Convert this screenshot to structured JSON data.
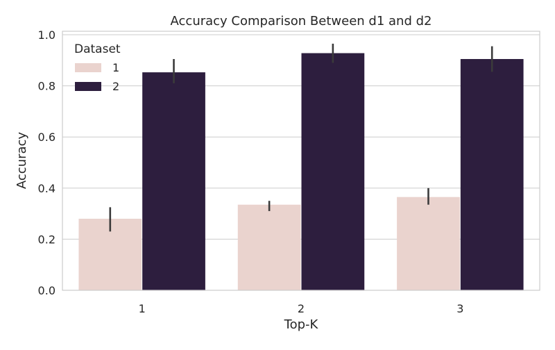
{
  "chart_data": {
    "type": "bar",
    "title": "Accuracy Comparison Between d1 and d2",
    "xlabel": "Top-K",
    "ylabel": "Accuracy",
    "categories": [
      "1",
      "2",
      "3"
    ],
    "ylim": [
      0,
      1.0
    ],
    "yticks": [
      0.0,
      0.2,
      0.4,
      0.6,
      0.8,
      1.0
    ],
    "yticklabels": [
      "0.0",
      "0.2",
      "0.4",
      "0.6",
      "0.8",
      "1.0"
    ],
    "grid": true,
    "legend": {
      "title": "Dataset",
      "placement": "top-left"
    },
    "series": [
      {
        "name": "1",
        "color": "#ead3ce",
        "values": [
          0.28,
          0.335,
          0.365
        ],
        "error_low": [
          0.23,
          0.31,
          0.335
        ],
        "error_high": [
          0.325,
          0.35,
          0.4
        ]
      },
      {
        "name": "2",
        "color": "#2d1e3e",
        "values": [
          0.853,
          0.928,
          0.905
        ],
        "error_low": [
          0.81,
          0.89,
          0.855
        ],
        "error_high": [
          0.905,
          0.965,
          0.955
        ]
      }
    ]
  }
}
